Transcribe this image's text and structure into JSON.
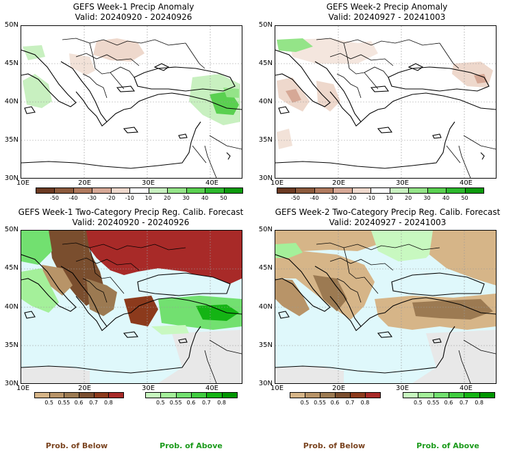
{
  "panels": [
    {
      "id": "p1",
      "title": "GEFS Week-1 Precip Anomaly",
      "valid": "Valid: 20240920 - 20240926"
    },
    {
      "id": "p2",
      "title": "GEFS Week-2 Precip Anomaly",
      "valid": "Valid: 20240927 - 20241003"
    },
    {
      "id": "p3",
      "title": "GEFS Week-1 Two-Category Precip Reg. Calib. Forecast",
      "valid": "Valid: 20240920 - 20240926"
    },
    {
      "id": "p4",
      "title": "GEFS Week-2 Two-Category Precip Reg. Calib. Forecast",
      "valid": "Valid: 20240927 - 20241003"
    }
  ],
  "axes": {
    "lat_labels": [
      "50N",
      "45N",
      "40N",
      "35N",
      "30N"
    ],
    "lon_labels": [
      "10E",
      "20E",
      "30E",
      "40E"
    ]
  },
  "anomaly_colorbar": {
    "ticks": [
      "-50",
      "-40",
      "-30",
      "-20",
      "-10",
      "10",
      "20",
      "30",
      "40",
      "50"
    ],
    "colors": [
      "#6b3a22",
      "#8c5a3c",
      "#b07a5e",
      "#d6a896",
      "#eed8cc",
      "#ffffff",
      "#c8f0c0",
      "#94e488",
      "#5ad050",
      "#2cb82c",
      "#0c9a0c"
    ]
  },
  "prob_below_colorbar": {
    "ticks": [
      "0.5",
      "0.55",
      "0.6",
      "0.7",
      "0.8"
    ],
    "colors": [
      "#d6b588",
      "#b89468",
      "#9c7a52",
      "#7a4e2e",
      "#8c3a1c",
      "#a82a28"
    ]
  },
  "prob_above_colorbar": {
    "ticks": [
      "0.5",
      "0.55",
      "0.6",
      "0.7",
      "0.8"
    ],
    "colors": [
      "#c8f8c0",
      "#a4f09a",
      "#72e070",
      "#40cc40",
      "#14b414",
      "#009600"
    ]
  },
  "bottom_labels": {
    "below": "Prob. of Below",
    "above": "Prob. of Above"
  },
  "colors": {
    "sea_fill": "#dff8fb",
    "land_outside": "#e8e8e8",
    "below_color": "#7a4420",
    "above_color": "#1a9a1a"
  }
}
